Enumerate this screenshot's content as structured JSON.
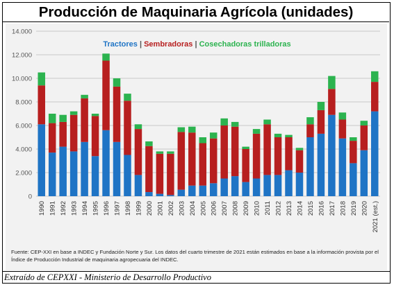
{
  "title": "Producción de Maquinaria Agrícola (unidades)",
  "footer": "Extraído de CEPXXI - Ministerio de Desarrollo Productivo",
  "source_note": "Fuente: CEP-XXI en base a INDEC y Fundación Norte y Sur. Los datos del cuarto trimestre de 2021 están estimados en base a la información provista por el Índice de Producción Industrial de maquinaria agropecuaria del INDEC.",
  "colors": {
    "tractores": "#1f74c5",
    "sembradoras": "#b71f1f",
    "cosechadoras": "#2cb34f",
    "grid": "#c8c8c8",
    "panel": "#f2f2f2"
  },
  "chart_data": {
    "type": "bar",
    "stacked": true,
    "categories": [
      "1990",
      "1991",
      "1992",
      "1993",
      "1994",
      "1995",
      "1996",
      "1997",
      "1998",
      "1999",
      "2000",
      "2001",
      "2002",
      "2003",
      "2004",
      "2005",
      "2006",
      "2007",
      "2008",
      "2009",
      "2010",
      "2011",
      "2012",
      "2013",
      "2014",
      "2015",
      "2016",
      "2017",
      "2018",
      "2019",
      "2020",
      "2021 (est.)"
    ],
    "series": [
      {
        "name": "Tractores",
        "values": [
          6100,
          3700,
          4200,
          3800,
          4600,
          3400,
          5600,
          4600,
          3500,
          1800,
          350,
          200,
          100,
          550,
          900,
          900,
          1100,
          1500,
          1700,
          1200,
          1500,
          1800,
          1800,
          2200,
          2000,
          5000,
          5300,
          6900,
          4900,
          2800,
          3900,
          7200
        ]
      },
      {
        "name": "Sembradoras",
        "values": [
          3300,
          2500,
          2100,
          3100,
          3700,
          3400,
          5900,
          4700,
          4600,
          3900,
          3900,
          3400,
          3500,
          4900,
          4500,
          3600,
          3800,
          4500,
          4200,
          2800,
          3800,
          4300,
          3200,
          2800,
          1900,
          1100,
          2000,
          2200,
          1600,
          1900,
          2100,
          2500
        ]
      },
      {
        "name": "Cosechadoras trilladoras",
        "values": [
          1100,
          800,
          600,
          300,
          300,
          200,
          600,
          700,
          600,
          400,
          400,
          200,
          200,
          400,
          500,
          500,
          500,
          600,
          400,
          200,
          400,
          400,
          300,
          200,
          200,
          600,
          700,
          1100,
          600,
          300,
          400,
          900
        ]
      }
    ],
    "legend": [
      "Tractores",
      "Sembradoras",
      "Cosechadoras trilladoras"
    ],
    "legend_position": "top-center",
    "y_ticks": [
      "0",
      "2.000",
      "4.000",
      "6.000",
      "8.000",
      "10.000",
      "12.000",
      "14.000"
    ],
    "ylim": [
      0,
      14000
    ],
    "grid": true
  }
}
